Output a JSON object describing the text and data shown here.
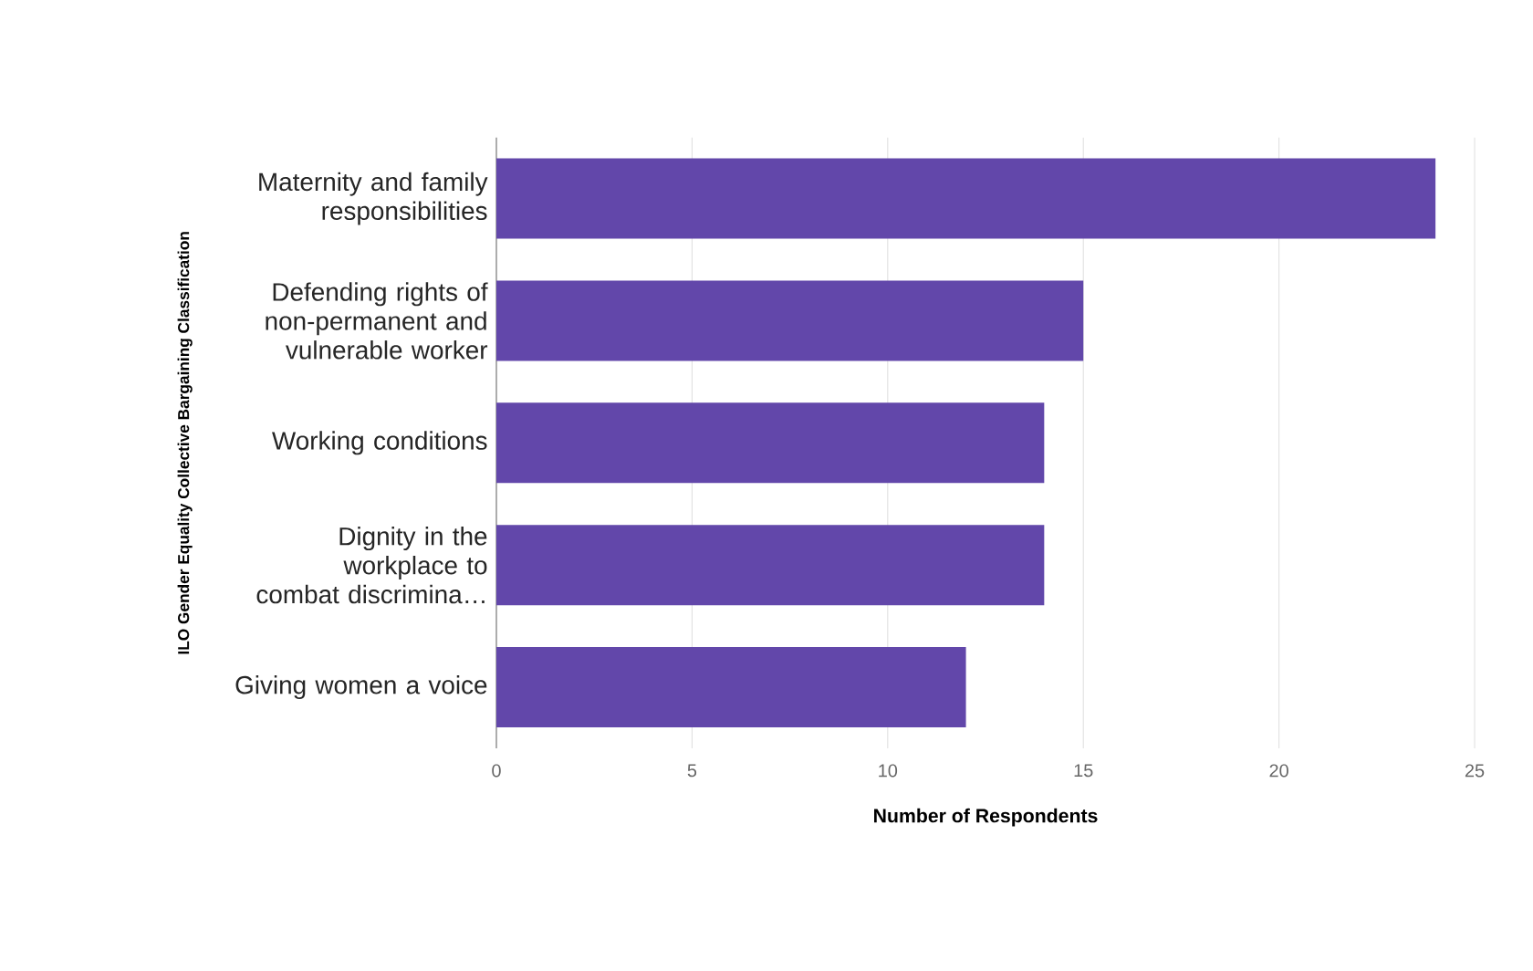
{
  "chart_data": {
    "type": "bar",
    "orientation": "horizontal",
    "categories": [
      "Maternity and family responsibilities",
      "Defending rights of non-permanent and vulnerable worker",
      "Working conditions",
      "Dignity in the workplace to combat discrimina…",
      "Giving women a voice"
    ],
    "values": [
      24,
      15,
      14,
      14,
      12
    ],
    "color": "#6247aa",
    "xlim": [
      0,
      25
    ],
    "xticks": [
      0,
      5,
      10,
      15,
      20,
      25
    ],
    "xlabel": "Number of Respondents",
    "ylabel": "ILO Gender Equality Collective Bargaining Classification",
    "grid": "x"
  }
}
